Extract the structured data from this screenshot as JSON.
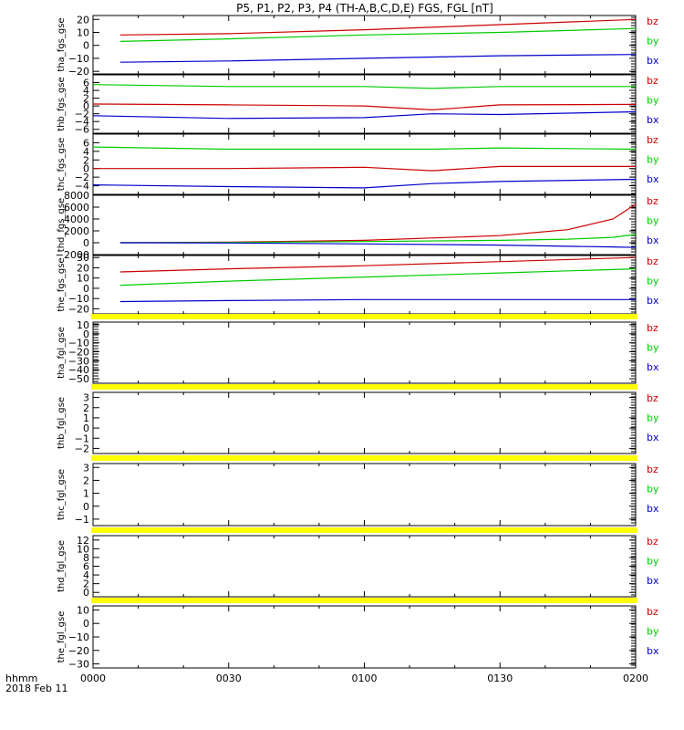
{
  "title": "P5, P1, P2, P3, P4 (TH-A,B,C,D,E) FGS, FGL [nT]",
  "time_axis": {
    "label_lines": [
      "hhmm",
      "2018 Feb 11"
    ],
    "ticks": [
      "0000",
      "0030",
      "0100",
      "0130",
      "0200"
    ],
    "range_minutes": [
      0,
      120
    ]
  },
  "colors": {
    "bz": "#cc0000",
    "by": "#00cc00",
    "bx": "#0000cc",
    "bar": "#ffff00"
  },
  "legend": [
    "bz",
    "by",
    "bx"
  ],
  "chart_data": [
    {
      "type": "line",
      "ylabel": "tha_fgs_gse",
      "ylim": [
        -22,
        23
      ],
      "yticks": [
        20,
        10,
        0,
        -10,
        -20
      ],
      "ytick_labels": [
        "20",
        "10",
        "0",
        "−10",
        "−20"
      ],
      "x": [
        6,
        30,
        60,
        90,
        120
      ],
      "series": [
        {
          "name": "bz",
          "values": [
            8,
            9,
            12,
            16,
            20
          ]
        },
        {
          "name": "by",
          "values": [
            3,
            5,
            8,
            10,
            13
          ]
        },
        {
          "name": "bx",
          "values": [
            -13,
            -12,
            -10,
            -8,
            -7
          ]
        }
      ]
    },
    {
      "type": "line",
      "ylabel": "thb_fgs_gse",
      "ylim": [
        -7,
        8
      ],
      "yticks": [
        6,
        4,
        2,
        0,
        -2,
        -4,
        -6
      ],
      "ytick_labels": [
        "6",
        "4",
        "2",
        "0",
        "−2",
        "−4",
        "−6"
      ],
      "x": [
        0,
        30,
        60,
        75,
        90,
        120
      ],
      "series": [
        {
          "name": "bz",
          "values": [
            0.5,
            0.3,
            0,
            -1,
            0.3,
            0.4
          ]
        },
        {
          "name": "by",
          "values": [
            5.5,
            5,
            5,
            4.5,
            5,
            5
          ]
        },
        {
          "name": "bx",
          "values": [
            -2.5,
            -3.2,
            -3,
            -2,
            -2.2,
            -1.5
          ]
        }
      ]
    },
    {
      "type": "line",
      "ylabel": "thc_fgs_gse",
      "ylim": [
        -6,
        8
      ],
      "yticks": [
        6,
        4,
        2,
        0,
        -2,
        -4
      ],
      "ytick_labels": [
        "6",
        "4",
        "2",
        "0",
        "−2",
        "−4"
      ],
      "x": [
        0,
        30,
        60,
        75,
        90,
        120
      ],
      "series": [
        {
          "name": "bz",
          "values": [
            0,
            0,
            0.3,
            -0.5,
            0.5,
            0.5
          ]
        },
        {
          "name": "by",
          "values": [
            5,
            4.5,
            4.5,
            4.5,
            4.8,
            4.5
          ]
        },
        {
          "name": "bx",
          "values": [
            -3.8,
            -4.2,
            -4.5,
            -3.5,
            -3,
            -2.5
          ]
        }
      ]
    },
    {
      "type": "line",
      "ylabel": "thd_fgs_gse",
      "ylim": [
        -2000,
        8000
      ],
      "yticks": [
        8000,
        6000,
        4000,
        2000,
        0,
        -2000
      ],
      "ytick_labels": [
        "8000",
        "6000",
        "4000",
        "2000",
        "0",
        "−2000"
      ],
      "x": [
        6,
        30,
        60,
        90,
        105,
        115,
        120
      ],
      "series": [
        {
          "name": "bz",
          "values": [
            0,
            100,
            400,
            1200,
            2200,
            4000,
            6500
          ]
        },
        {
          "name": "by",
          "values": [
            0,
            50,
            200,
            400,
            600,
            900,
            1400
          ]
        },
        {
          "name": "bx",
          "values": [
            0,
            -50,
            -200,
            -400,
            -600,
            -700,
            -800
          ]
        }
      ]
    },
    {
      "type": "line",
      "ylabel": "the_fgs_gse",
      "ylim": [
        -25,
        32
      ],
      "yticks": [
        30,
        20,
        10,
        0,
        -10,
        -20
      ],
      "ytick_labels": [
        "30",
        "20",
        "10",
        "0",
        "−10",
        "−20"
      ],
      "x": [
        6,
        30,
        60,
        90,
        120
      ],
      "series": [
        {
          "name": "bz",
          "values": [
            16,
            19,
            22,
            26,
            30
          ]
        },
        {
          "name": "by",
          "values": [
            3,
            7,
            11,
            15,
            19
          ]
        },
        {
          "name": "bx",
          "values": [
            -13,
            -12,
            -11,
            -11,
            -11
          ]
        }
      ]
    },
    {
      "type": "line",
      "ylabel": "tha_fgl_gse",
      "ylim": [
        -55,
        13
      ],
      "yticks": [
        10,
        0,
        -10,
        -20,
        -30,
        -40,
        -50
      ],
      "ytick_labels": [
        "10",
        "0",
        "−10",
        "−20",
        "−30",
        "−40",
        "−50"
      ],
      "x": [],
      "series": []
    },
    {
      "type": "line",
      "ylabel": "thb_fgl_gse",
      "ylim": [
        -2.5,
        3.5
      ],
      "yticks": [
        3,
        2,
        1,
        0,
        -1,
        -2
      ],
      "ytick_labels": [
        "3",
        "2",
        "1",
        "0",
        "−1",
        "−2"
      ],
      "x": [],
      "series": []
    },
    {
      "type": "line",
      "ylabel": "thc_fgl_gse",
      "ylim": [
        -1.5,
        3.3
      ],
      "yticks": [
        3,
        2,
        1,
        0,
        -1
      ],
      "ytick_labels": [
        "3",
        "2",
        "1",
        "0",
        "−1"
      ],
      "x": [],
      "series": []
    },
    {
      "type": "line",
      "ylabel": "thd_fgl_gse",
      "ylim": [
        -1,
        13
      ],
      "yticks": [
        12,
        10,
        8,
        6,
        4,
        2,
        0
      ],
      "ytick_labels": [
        "12",
        "10",
        "8",
        "6",
        "4",
        "2",
        "0"
      ],
      "x": [],
      "series": []
    },
    {
      "type": "line",
      "ylabel": "the_fgl_gse",
      "ylim": [
        -33,
        13
      ],
      "yticks": [
        10,
        0,
        -10,
        -20,
        -30
      ],
      "ytick_labels": [
        "10",
        "0",
        "−10",
        "−20",
        "−30"
      ],
      "x": [],
      "series": []
    }
  ]
}
